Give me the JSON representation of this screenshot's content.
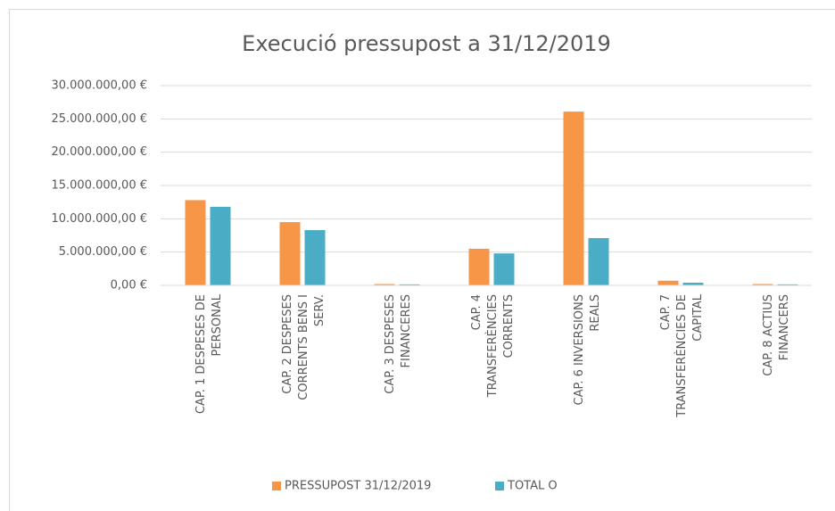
{
  "chart_data": {
    "type": "bar",
    "title": "Execució pressupost a 31/12/2019",
    "categories": [
      "CAP. 1 DESPESES DE PERSONAL",
      "CAP. 2 DESPESES CORRENTS BENS I SERV.",
      "CAP. 3 DESPESES FINANCERES",
      "CAP. 4 TRANSFERÈNCIES CORRENTS",
      "CAP. 6 INVERSIONS REALS",
      "CAP. 7 TRANSFERÈNCIES DE CAPITAL",
      "CAP. 8 ACTIUS FINANCERS"
    ],
    "series": [
      {
        "name": "PRESSUPOST 31/12/2019",
        "color": "#f79646",
        "values": [
          12800000,
          9500000,
          200000,
          5500000,
          26100000,
          700000,
          200000
        ]
      },
      {
        "name": "TOTAL O",
        "color": "#4bacc6",
        "values": [
          11800000,
          8300000,
          150000,
          4800000,
          7100000,
          400000,
          150000
        ]
      }
    ],
    "ylim": [
      0,
      30000000
    ],
    "yticks": [
      {
        "value": 0,
        "label": "0,00 €"
      },
      {
        "value": 5000000,
        "label": "5.000.000,00 €"
      },
      {
        "value": 10000000,
        "label": "10.000.000,00 €"
      },
      {
        "value": 15000000,
        "label": "15.000.000,00 €"
      },
      {
        "value": 20000000,
        "label": "20.000.000,00 €"
      },
      {
        "value": 25000000,
        "label": "25.000.000,00 €"
      },
      {
        "value": 30000000,
        "label": "30.000.000,00 €"
      }
    ],
    "grid": true,
    "legend": "bottom"
  }
}
